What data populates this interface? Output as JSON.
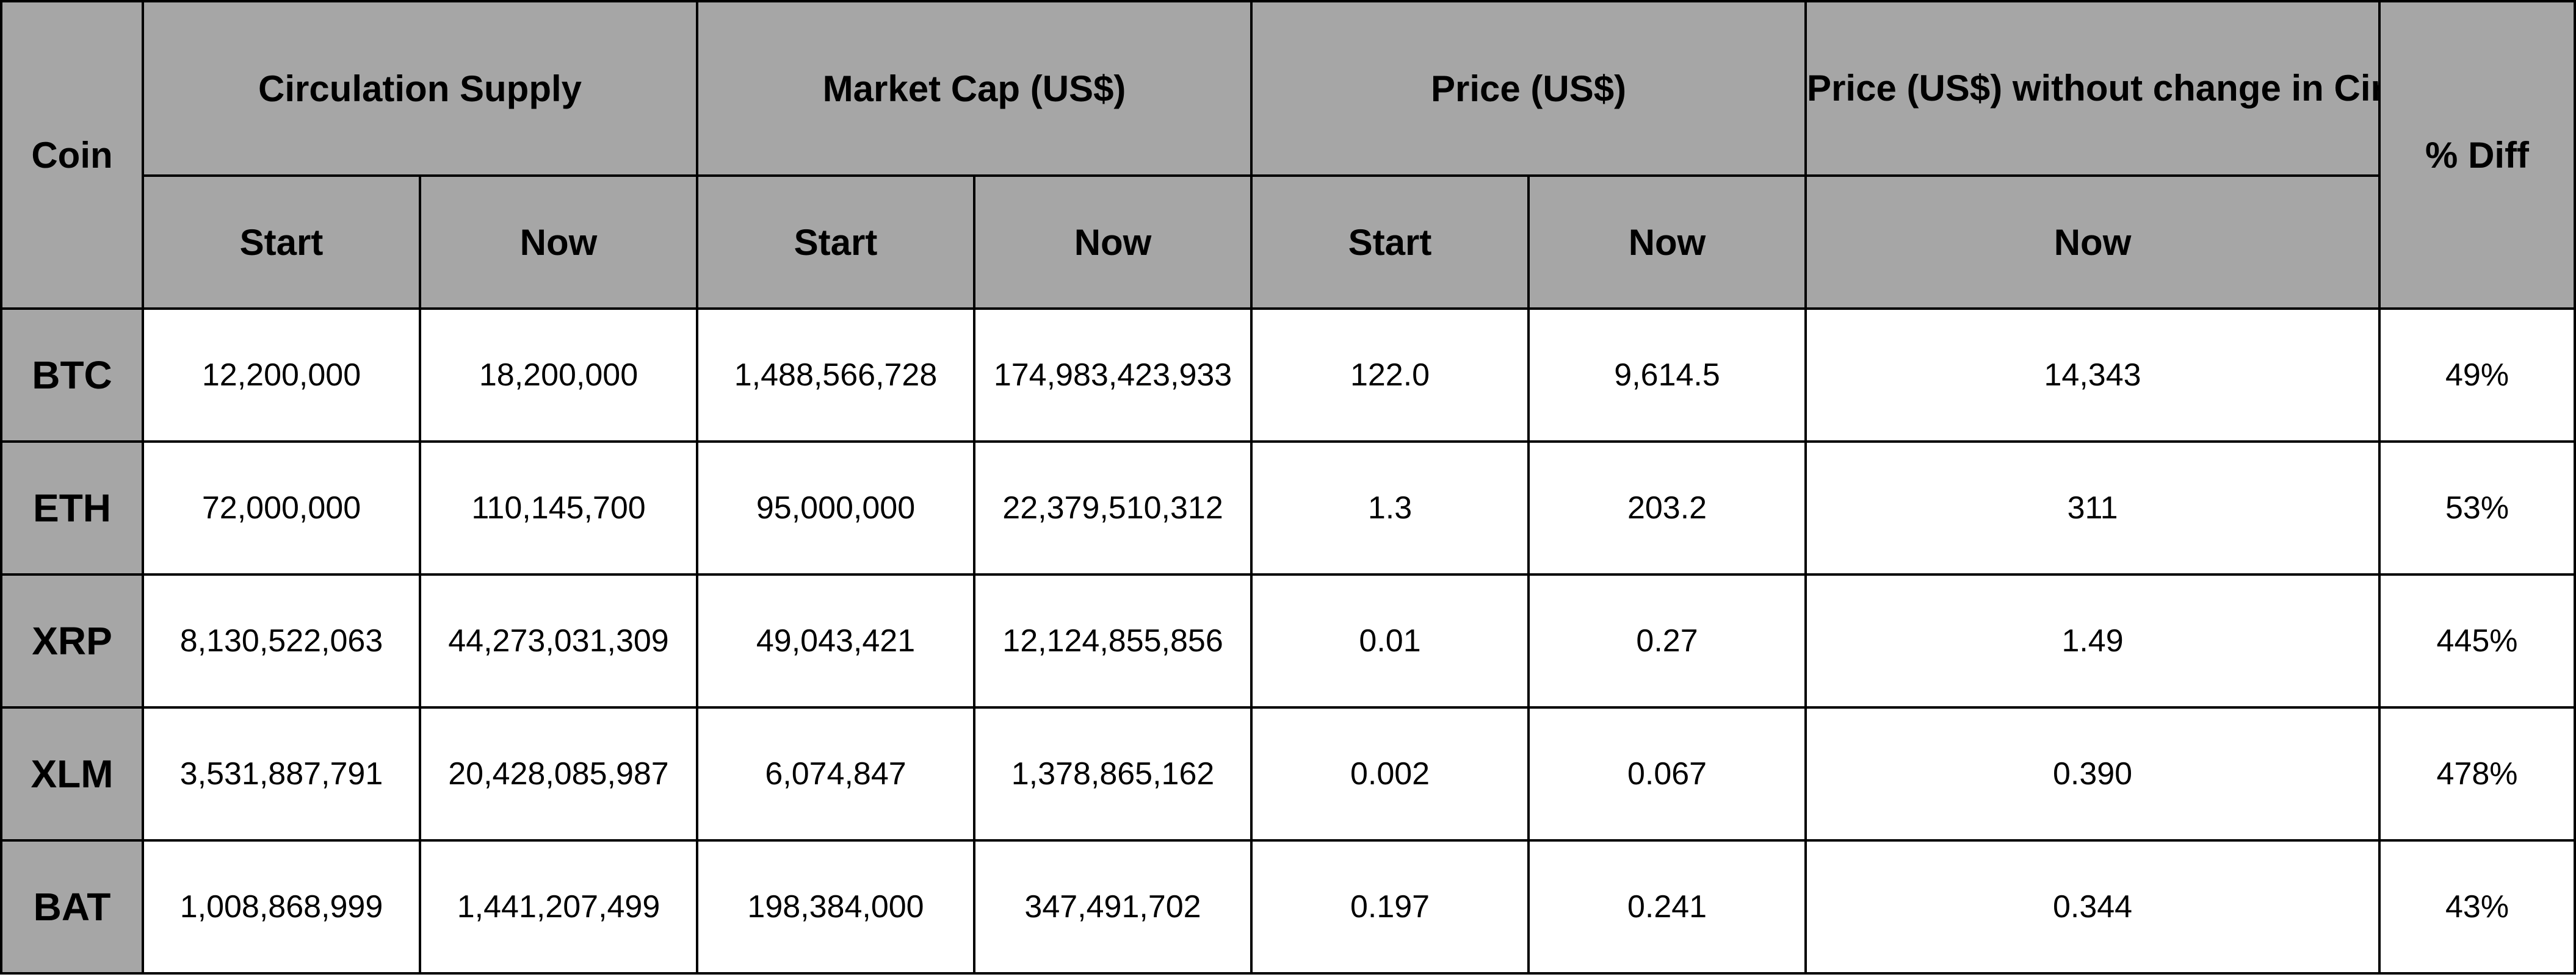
{
  "headers": {
    "coin": "Coin",
    "circulation_supply": "Circulation Supply",
    "market_cap": "Market Cap (US$)",
    "price": "Price (US$)",
    "price_without_change": "Price (US$) without change in Circulation Supply",
    "pct_diff": "% Diff",
    "start": "Start",
    "now": "Now"
  },
  "rows": [
    {
      "coin": "BTC",
      "supply_start": "12,200,000",
      "supply_now": "18,200,000",
      "mcap_start": "1,488,566,728",
      "mcap_now": "174,983,423,933",
      "price_start": "122.0",
      "price_now": "9,614.5",
      "price_no_change": "14,343",
      "pct_diff": "49%"
    },
    {
      "coin": "ETH",
      "supply_start": "72,000,000",
      "supply_now": "110,145,700",
      "mcap_start": "95,000,000",
      "mcap_now": "22,379,510,312",
      "price_start": "1.3",
      "price_now": "203.2",
      "price_no_change": "311",
      "pct_diff": "53%"
    },
    {
      "coin": "XRP",
      "supply_start": "8,130,522,063",
      "supply_now": "44,273,031,309",
      "mcap_start": "49,043,421",
      "mcap_now": "12,124,855,856",
      "price_start": "0.01",
      "price_now": "0.27",
      "price_no_change": "1.49",
      "pct_diff": "445%"
    },
    {
      "coin": "XLM",
      "supply_start": "3,531,887,791",
      "supply_now": "20,428,085,987",
      "mcap_start": "6,074,847",
      "mcap_now": "1,378,865,162",
      "price_start": "0.002",
      "price_now": "0.067",
      "price_no_change": "0.390",
      "pct_diff": "478%"
    },
    {
      "coin": "BAT",
      "supply_start": "1,008,868,999",
      "supply_now": "1,441,207,499",
      "mcap_start": "198,384,000",
      "mcap_now": "347,491,702",
      "price_start": "0.197",
      "price_now": "0.241",
      "price_no_change": "0.344",
      "pct_diff": "43%"
    }
  ],
  "colors": {
    "header_bg": "#a6a6a6",
    "cell_bg": "#ffffff",
    "border": "#000000"
  }
}
